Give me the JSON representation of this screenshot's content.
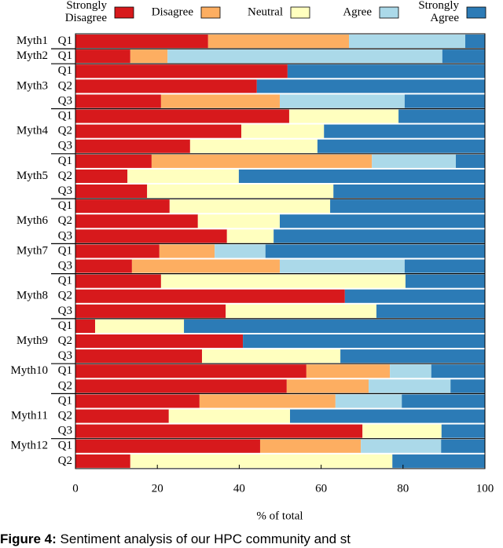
{
  "chart_data": {
    "type": "stacked-bar-horizontal",
    "x_label": "% of total",
    "xlim": [
      0,
      100
    ],
    "xticks": [
      0,
      20,
      40,
      60,
      80,
      100
    ],
    "groups": [
      {
        "name": "Myth1",
        "questions": [
          "Q1"
        ]
      },
      {
        "name": "Myth2",
        "questions": [
          "Q1"
        ]
      },
      {
        "name": "Myth3",
        "questions": [
          "Q1",
          "Q2",
          "Q3"
        ]
      },
      {
        "name": "Myth4",
        "questions": [
          "Q1",
          "Q2",
          "Q3"
        ]
      },
      {
        "name": "Myth5",
        "questions": [
          "Q1",
          "Q2",
          "Q3"
        ]
      },
      {
        "name": "Myth6",
        "questions": [
          "Q1",
          "Q2",
          "Q3"
        ]
      },
      {
        "name": "Myth7",
        "questions": [
          "Q1",
          "Q3"
        ]
      },
      {
        "name": "Myth8",
        "questions": [
          "Q1",
          "Q2",
          "Q3"
        ]
      },
      {
        "name": "Myth9",
        "questions": [
          "Q1",
          "Q2",
          "Q3"
        ]
      },
      {
        "name": "Myth10",
        "questions": [
          "Q1",
          "Q2"
        ]
      },
      {
        "name": "Myth11",
        "questions": [
          "Q1",
          "Q2",
          "Q3"
        ]
      },
      {
        "name": "Myth12",
        "questions": [
          "Q1",
          "Q2"
        ]
      }
    ],
    "series": [
      {
        "name": "Strongly Disagree",
        "color": "#d7191c",
        "values": [
          32.4,
          13.4,
          51.8,
          44.3,
          20.9,
          52.2,
          40.5,
          28.0,
          18.6,
          12.7,
          17.5,
          23.0,
          29.9,
          37.0,
          20.5,
          13.8,
          20.9,
          65.8,
          36.7,
          4.8,
          40.9,
          30.9,
          56.4,
          51.6,
          30.3,
          22.8,
          70.1,
          45.1,
          13.4
        ]
      },
      {
        "name": "Disagree",
        "color": "#fdae61",
        "values": [
          34.4,
          9.1,
          0,
          0,
          29.0,
          0,
          0,
          0,
          53.8,
          0,
          0,
          0,
          0,
          0,
          13.5,
          36.1,
          0,
          0,
          0,
          0,
          0,
          0,
          20.4,
          20.0,
          33.2,
          0,
          0,
          24.6,
          0
        ]
      },
      {
        "name": "Neutral",
        "color": "#ffffbf",
        "values": [
          0,
          0,
          0,
          0,
          0,
          26.7,
          20.2,
          31.1,
          0,
          27.2,
          45.5,
          39.2,
          20.0,
          11.4,
          0,
          0,
          59.7,
          0,
          36.8,
          21.7,
          0,
          33.8,
          0,
          0,
          0,
          29.6,
          19.3,
          0,
          64.0
        ]
      },
      {
        "name": "Agree",
        "color": "#abd9e9",
        "values": [
          28.4,
          67.1,
          0,
          0,
          30.5,
          0,
          0,
          0,
          20.5,
          0,
          0,
          0,
          0,
          0,
          12.4,
          30.5,
          0,
          0,
          0,
          0,
          0,
          0,
          10.1,
          20.0,
          16.2,
          0,
          0,
          19.6,
          0
        ]
      },
      {
        "name": "Strongly Agree",
        "color": "#2c7bb6",
        "values": [
          4.8,
          10.4,
          48.2,
          55.7,
          19.6,
          21.1,
          39.3,
          40.9,
          7.1,
          60.1,
          37.0,
          37.8,
          50.1,
          51.6,
          53.6,
          19.6,
          19.4,
          34.2,
          26.5,
          73.5,
          59.1,
          35.3,
          13.1,
          8.4,
          20.3,
          47.6,
          10.6,
          10.7,
          22.6
        ]
      }
    ],
    "caption_label": "Figure 4:",
    "caption": "Sentiment analysis of our HPC community and st"
  }
}
